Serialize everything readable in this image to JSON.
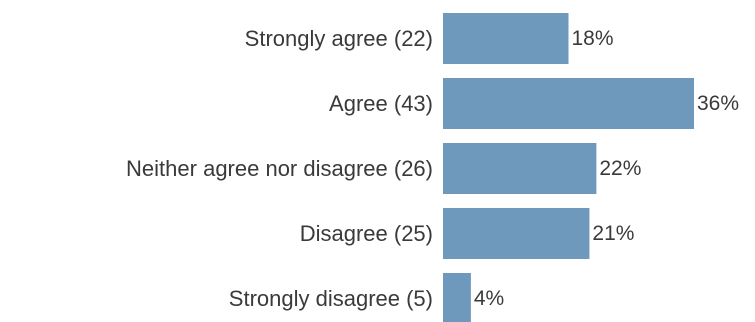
{
  "chart_data": {
    "type": "bar",
    "orientation": "horizontal",
    "categories": [
      "Strongly agree (22)",
      "Agree (43)",
      "Neither agree nor disagree (26)",
      "Disagree (25)",
      "Strongly disagree (5)"
    ],
    "values": [
      18,
      36,
      22,
      21,
      4
    ],
    "value_labels": [
      "18%",
      "36%",
      "22%",
      "21%",
      "4%"
    ],
    "unit": "%",
    "title": "",
    "xlabel": "",
    "ylabel": "",
    "xlim": [
      0,
      36
    ],
    "grid": false,
    "legend": "none",
    "bar_color": "#6f98bd"
  }
}
